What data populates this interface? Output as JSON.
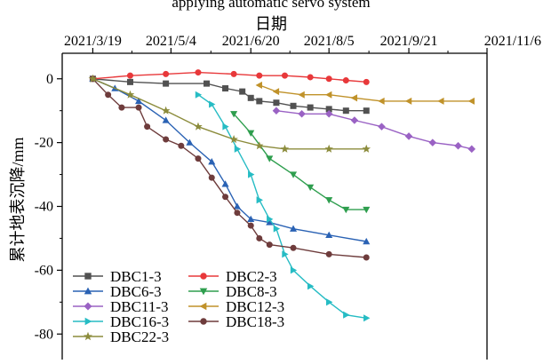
{
  "chart_data": {
    "type": "line",
    "title": "applying automatic servo system",
    "xlabel": "日期",
    "ylabel": "累计地表沉降/mm",
    "x_tick_labels": [
      "2021/3/19",
      "2021/5/4",
      "2021/6/20",
      "2021/8/5",
      "2021/9/21",
      "2021/11/6"
    ],
    "y_tick_labels": [
      "0",
      "-20",
      "-40",
      "-60",
      "-80"
    ],
    "x_ticks": [
      "2021-03-19",
      "2021-05-04",
      "2021-06-20",
      "2021-08-05",
      "2021-09-21",
      "2021-11-06"
    ],
    "y_ticks": [
      0,
      -20,
      -40,
      -60,
      -80
    ],
    "xlim": [
      "2021-03-01",
      "2021-11-06"
    ],
    "ylim": [
      -88,
      8
    ],
    "x_axis_position": "top",
    "grid": false,
    "legend_position": "bottom-left",
    "series": [
      {
        "name": "DBC1-3",
        "color": "#515151",
        "marker": "square",
        "points": [
          [
            "2021-03-19",
            0
          ],
          [
            "2021-04-10",
            -1
          ],
          [
            "2021-05-01",
            -1.5
          ],
          [
            "2021-05-25",
            -1.5
          ],
          [
            "2021-06-05",
            -3
          ],
          [
            "2021-06-15",
            -4
          ],
          [
            "2021-06-20",
            -6
          ],
          [
            "2021-06-25",
            -7
          ],
          [
            "2021-07-05",
            -7.5
          ],
          [
            "2021-07-15",
            -8.5
          ],
          [
            "2021-07-25",
            -9
          ],
          [
            "2021-08-05",
            -9.5
          ],
          [
            "2021-08-15",
            -10
          ],
          [
            "2021-08-27",
            -10
          ]
        ]
      },
      {
        "name": "DBC2-3",
        "color": "#e8383a",
        "marker": "circle",
        "points": [
          [
            "2021-03-19",
            0
          ],
          [
            "2021-04-10",
            1
          ],
          [
            "2021-05-01",
            1.5
          ],
          [
            "2021-05-20",
            2
          ],
          [
            "2021-06-10",
            1.5
          ],
          [
            "2021-06-25",
            1
          ],
          [
            "2021-07-10",
            1
          ],
          [
            "2021-07-25",
            0.5
          ],
          [
            "2021-08-05",
            0
          ],
          [
            "2021-08-15",
            -0.5
          ],
          [
            "2021-08-27",
            -1
          ]
        ]
      },
      {
        "name": "DBC6-3",
        "color": "#2a62b4",
        "marker": "triangle-up",
        "points": [
          [
            "2021-03-19",
            0
          ],
          [
            "2021-04-01",
            -3
          ],
          [
            "2021-04-15",
            -7
          ],
          [
            "2021-05-01",
            -13
          ],
          [
            "2021-05-15",
            -20
          ],
          [
            "2021-05-28",
            -26
          ],
          [
            "2021-06-05",
            -33
          ],
          [
            "2021-06-12",
            -40
          ],
          [
            "2021-06-20",
            -44
          ],
          [
            "2021-07-01",
            -45
          ],
          [
            "2021-07-15",
            -47
          ],
          [
            "2021-08-05",
            -49
          ],
          [
            "2021-08-27",
            -51
          ]
        ]
      },
      {
        "name": "DBC8-3",
        "color": "#2e9e4e",
        "marker": "triangle-down",
        "points": [
          [
            "2021-06-10",
            -11
          ],
          [
            "2021-06-20",
            -17
          ],
          [
            "2021-07-01",
            -25
          ],
          [
            "2021-07-15",
            -30
          ],
          [
            "2021-07-25",
            -34
          ],
          [
            "2021-08-05",
            -38
          ],
          [
            "2021-08-15",
            -41
          ],
          [
            "2021-08-27",
            -41
          ]
        ]
      },
      {
        "name": "DBC11-3",
        "color": "#9a62c4",
        "marker": "diamond",
        "points": [
          [
            "2021-07-05",
            -10
          ],
          [
            "2021-07-20",
            -11
          ],
          [
            "2021-08-05",
            -11
          ],
          [
            "2021-08-20",
            -13
          ],
          [
            "2021-09-05",
            -15
          ],
          [
            "2021-09-21",
            -18
          ],
          [
            "2021-10-05",
            -20
          ],
          [
            "2021-10-20",
            -21
          ],
          [
            "2021-10-28",
            -22
          ]
        ]
      },
      {
        "name": "DBC12-3",
        "color": "#c0922a",
        "marker": "triangle-left",
        "points": [
          [
            "2021-06-25",
            -2
          ],
          [
            "2021-07-05",
            -4
          ],
          [
            "2021-07-20",
            -5
          ],
          [
            "2021-08-05",
            -5
          ],
          [
            "2021-08-20",
            -6
          ],
          [
            "2021-09-05",
            -7
          ],
          [
            "2021-09-21",
            -7
          ],
          [
            "2021-10-10",
            -7
          ],
          [
            "2021-10-28",
            -7
          ]
        ]
      },
      {
        "name": "DBC16-3",
        "color": "#26bcc4",
        "marker": "triangle-right",
        "points": [
          [
            "2021-05-20",
            -5
          ],
          [
            "2021-05-28",
            -8
          ],
          [
            "2021-06-05",
            -15
          ],
          [
            "2021-06-12",
            -22
          ],
          [
            "2021-06-20",
            -30
          ],
          [
            "2021-06-25",
            -38
          ],
          [
            "2021-07-01",
            -44
          ],
          [
            "2021-07-05",
            -47
          ],
          [
            "2021-07-10",
            -55
          ],
          [
            "2021-07-15",
            -60
          ],
          [
            "2021-07-25",
            -65
          ],
          [
            "2021-08-05",
            -70
          ],
          [
            "2021-08-15",
            -74
          ],
          [
            "2021-08-27",
            -75
          ]
        ]
      },
      {
        "name": "DBC18-3",
        "color": "#6e3c3c",
        "marker": "circle",
        "points": [
          [
            "2021-03-19",
            0
          ],
          [
            "2021-03-28",
            -5
          ],
          [
            "2021-04-05",
            -9
          ],
          [
            "2021-04-15",
            -9
          ],
          [
            "2021-04-20",
            -15
          ],
          [
            "2021-05-01",
            -19
          ],
          [
            "2021-05-10",
            -21
          ],
          [
            "2021-05-20",
            -25
          ],
          [
            "2021-05-28",
            -31
          ],
          [
            "2021-06-05",
            -37
          ],
          [
            "2021-06-12",
            -42
          ],
          [
            "2021-06-20",
            -46
          ],
          [
            "2021-06-25",
            -50
          ],
          [
            "2021-07-01",
            -52
          ],
          [
            "2021-07-15",
            -53
          ],
          [
            "2021-08-05",
            -55
          ],
          [
            "2021-08-27",
            -56
          ]
        ]
      },
      {
        "name": "DBC22-3",
        "color": "#8c8c3c",
        "marker": "star",
        "points": [
          [
            "2021-03-19",
            0
          ],
          [
            "2021-04-10",
            -5
          ],
          [
            "2021-05-01",
            -10
          ],
          [
            "2021-05-20",
            -15
          ],
          [
            "2021-06-10",
            -19
          ],
          [
            "2021-06-25",
            -21
          ],
          [
            "2021-07-10",
            -22
          ],
          [
            "2021-08-05",
            -22
          ],
          [
            "2021-08-27",
            -22
          ]
        ]
      }
    ]
  }
}
